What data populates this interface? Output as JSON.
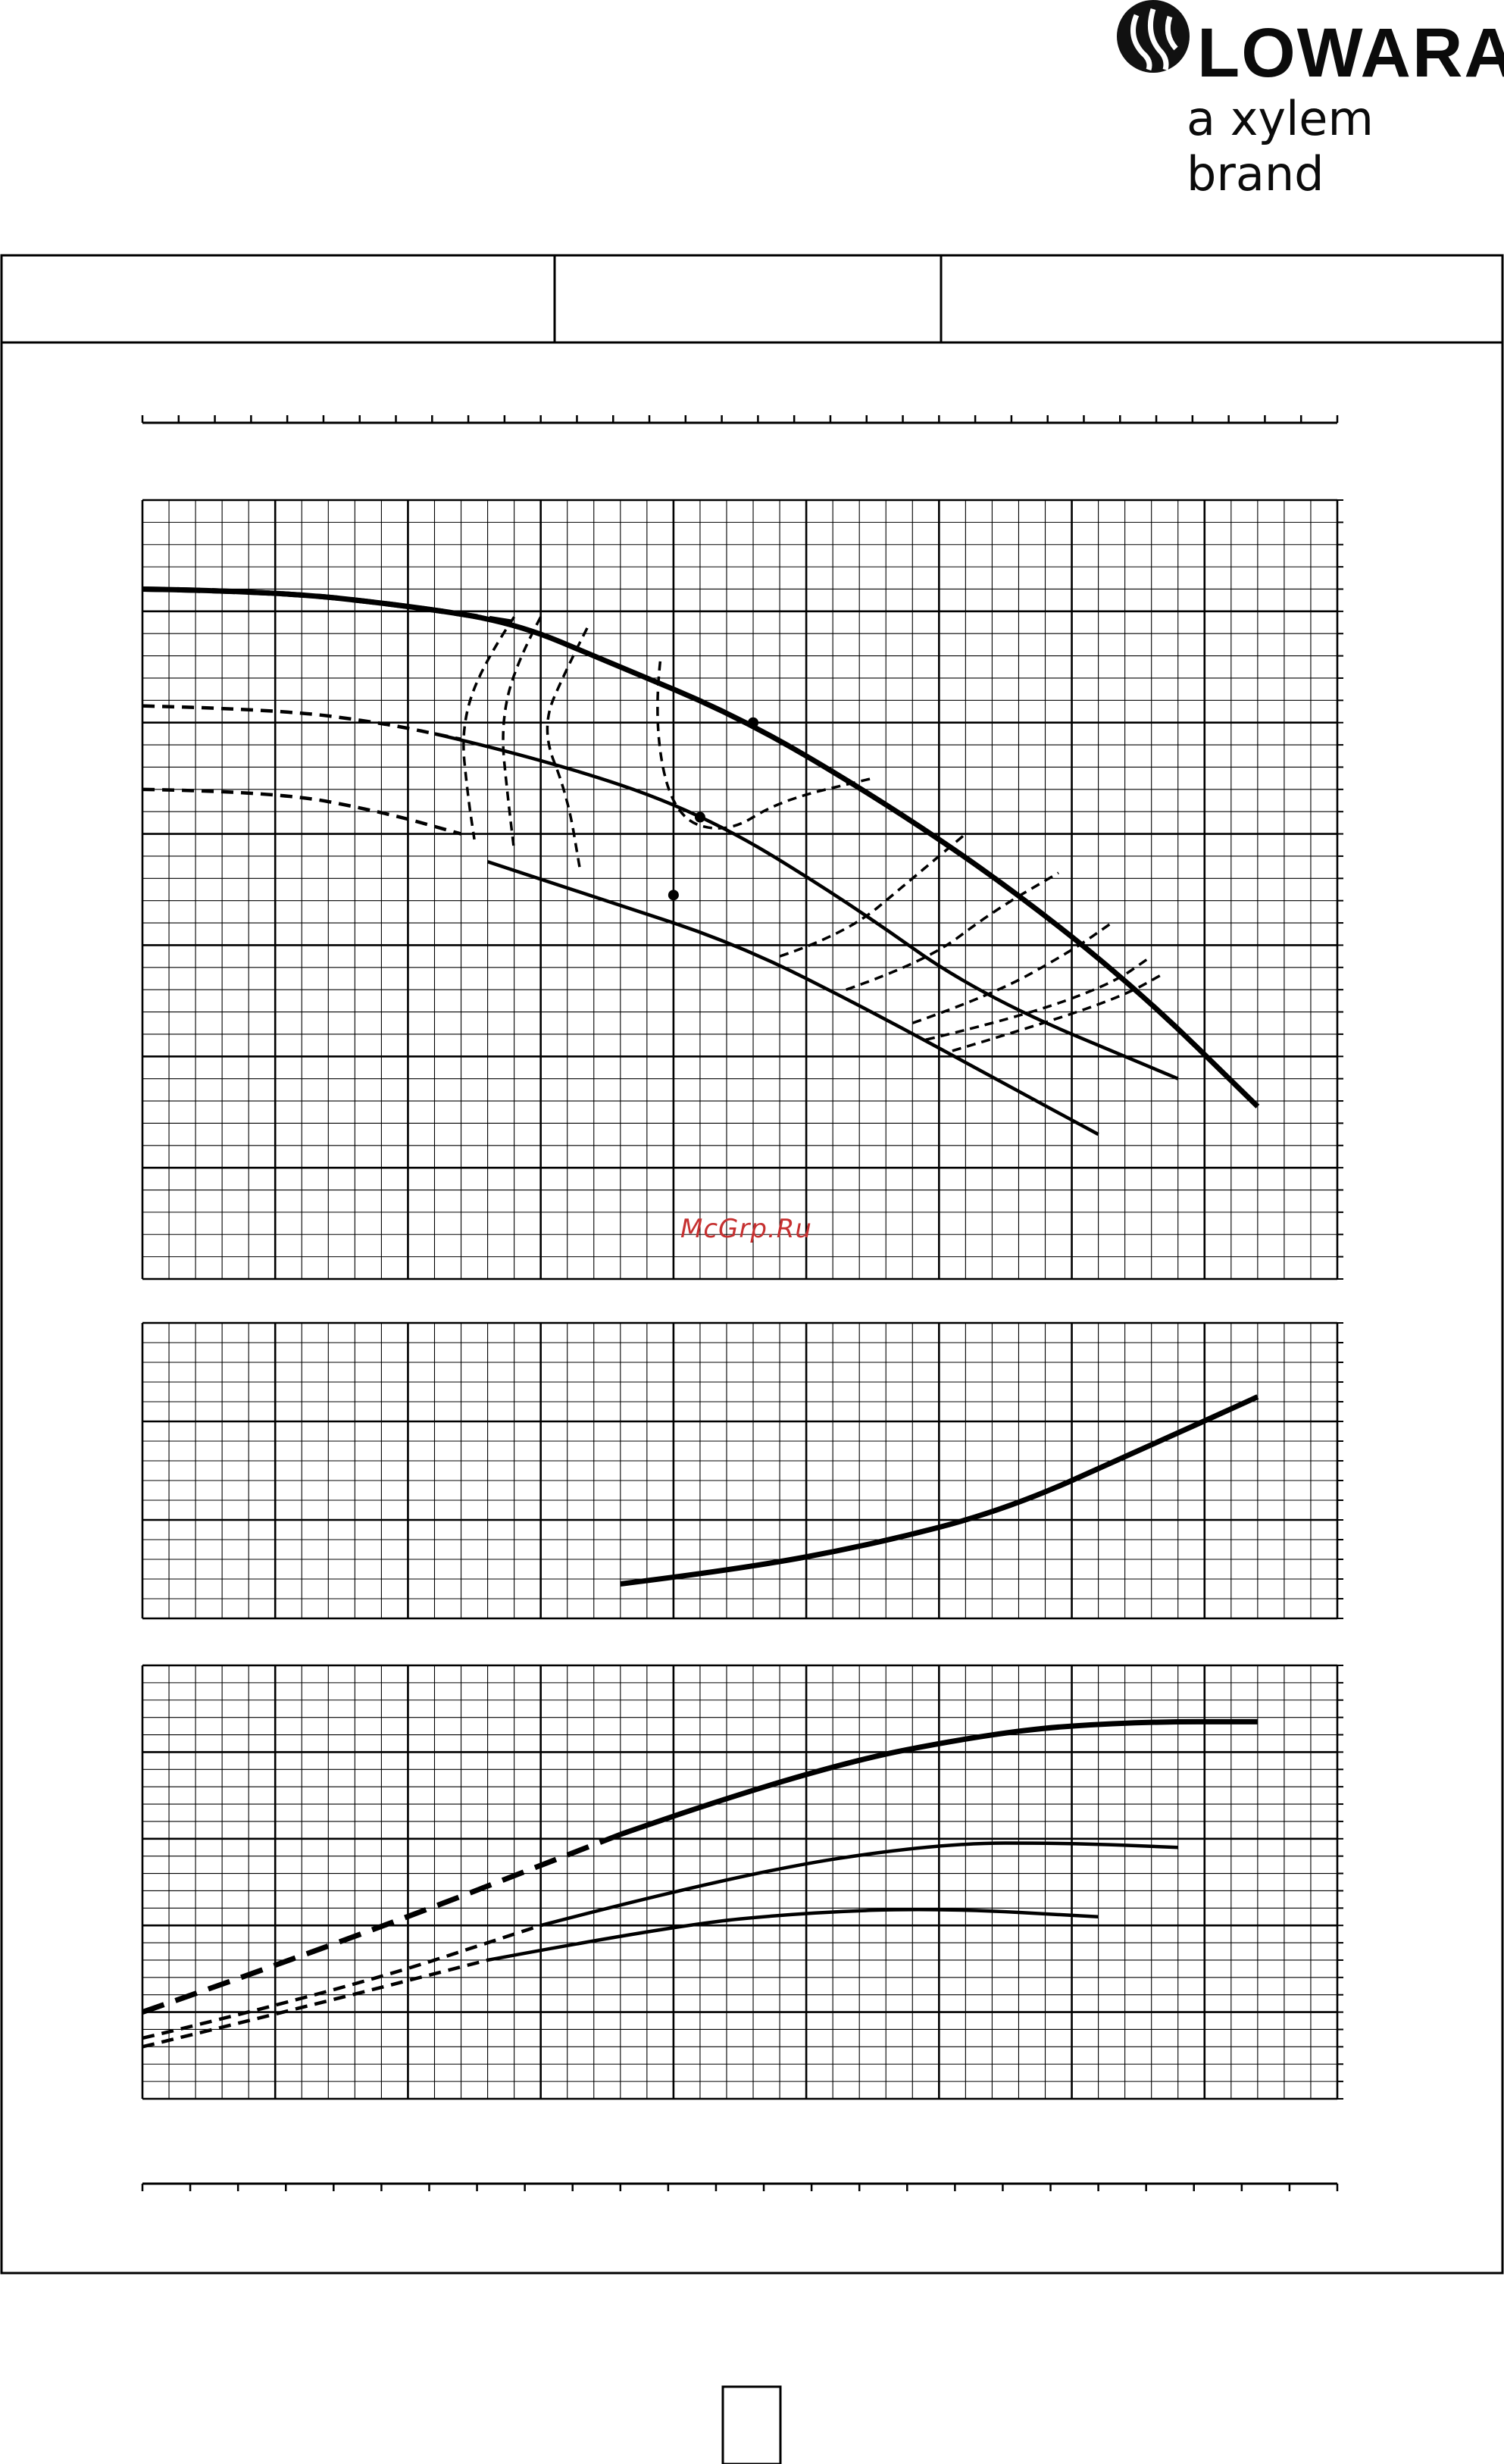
{
  "header": {
    "brand": "LOWARA",
    "tagline": "a xylem brand",
    "watermark": "McGrp.Ru"
  },
  "colors": {
    "ink": "#000000",
    "grid": "#000000",
    "watermark": "#c63030",
    "background": "#ffffff"
  },
  "chart_data": [
    {
      "id": "head",
      "type": "line",
      "title": "",
      "xlabel": "",
      "ylabel": "",
      "x_range": [
        0,
        9
      ],
      "y_range": [
        0,
        7
      ],
      "grid": true,
      "series": [
        {
          "style": "solid-bold",
          "points": [
            [
              0,
              6.2
            ],
            [
              1,
              6.18
            ],
            [
              2,
              6.05
            ],
            [
              2.8,
              5.9
            ],
            [
              3.5,
              5.55
            ],
            [
              4.5,
              5.05
            ],
            [
              5.5,
              4.35
            ],
            [
              6.5,
              3.55
            ],
            [
              7.5,
              2.6
            ],
            [
              8.4,
              1.55
            ]
          ]
        },
        {
          "style": "dashed-bold",
          "points": [
            [
              0,
              6.2
            ],
            [
              1,
              6.18
            ],
            [
              2,
              6.05
            ],
            [
              2.8,
              5.9
            ]
          ]
        },
        {
          "style": "solid",
          "points": [
            [
              2.2,
              4.9
            ],
            [
              3,
              4.68
            ],
            [
              4.2,
              4.2
            ],
            [
              5.3,
              3.4
            ],
            [
              6.3,
              2.55
            ],
            [
              7.8,
              1.8
            ]
          ]
        },
        {
          "style": "dashed",
          "points": [
            [
              0,
              5.15
            ],
            [
              1,
              5.12
            ],
            [
              1.8,
              5.0
            ],
            [
              2.4,
              4.85
            ]
          ]
        },
        {
          "style": "solid",
          "points": [
            [
              2.6,
              3.75
            ],
            [
              3.5,
              3.4
            ],
            [
              4.5,
              3.0
            ],
            [
              5.5,
              2.4
            ],
            [
              6.5,
              1.75
            ],
            [
              7.2,
              1.3
            ]
          ]
        },
        {
          "style": "dashed",
          "points": [
            [
              0,
              4.4
            ],
            [
              1,
              4.38
            ],
            [
              1.8,
              4.2
            ],
            [
              2.4,
              4.0
            ]
          ]
        }
      ],
      "iso_curves": [
        {
          "style": "dashed",
          "points": [
            [
              2.8,
              5.95
            ],
            [
              2.55,
              5.5
            ],
            [
              2.4,
              4.95
            ],
            [
              2.45,
              4.35
            ],
            [
              2.5,
              3.95
            ]
          ]
        },
        {
          "style": "dashed",
          "points": [
            [
              3.0,
              5.95
            ],
            [
              2.8,
              5.5
            ],
            [
              2.7,
              4.95
            ],
            [
              2.75,
              4.35
            ],
            [
              2.8,
              3.85
            ]
          ]
        },
        {
          "style": "dashed",
          "points": [
            [
              3.35,
              5.85
            ],
            [
              3.2,
              5.5
            ],
            [
              3.0,
              4.95
            ],
            [
              3.2,
              4.35
            ],
            [
              3.3,
              3.65
            ]
          ]
        },
        {
          "style": "dashed",
          "points": [
            [
              3.9,
              5.55
            ],
            [
              3.85,
              5.0
            ],
            [
              4.0,
              4.15
            ],
            [
              4.4,
              4.0
            ],
            [
              4.8,
              4.3
            ],
            [
              5.5,
              4.5
            ]
          ]
        },
        {
          "style": "dashed",
          "points": [
            [
              4.8,
              2.9
            ],
            [
              5.3,
              3.1
            ],
            [
              5.8,
              3.6
            ],
            [
              6.2,
              4.0
            ]
          ]
        },
        {
          "style": "dashed",
          "points": [
            [
              5.3,
              2.6
            ],
            [
              5.9,
              2.85
            ],
            [
              6.4,
              3.3
            ],
            [
              6.9,
              3.65
            ]
          ]
        },
        {
          "style": "dashed",
          "points": [
            [
              5.8,
              2.3
            ],
            [
              6.4,
              2.55
            ],
            [
              7.0,
              2.95
            ],
            [
              7.3,
              3.2
            ]
          ]
        },
        {
          "style": "dashed",
          "points": [
            [
              5.9,
              2.15
            ],
            [
              6.6,
              2.35
            ],
            [
              7.3,
              2.65
            ],
            [
              7.6,
              2.9
            ]
          ]
        },
        {
          "style": "dashed",
          "points": [
            [
              6.1,
              2.05
            ],
            [
              6.8,
              2.3
            ],
            [
              7.4,
              2.55
            ],
            [
              7.7,
              2.75
            ]
          ]
        }
      ],
      "markers": [
        [
          4.6,
          5.0
        ],
        [
          4.2,
          4.15
        ],
        [
          4.0,
          3.45
        ]
      ]
    },
    {
      "id": "npsh",
      "type": "line",
      "title": "",
      "xlabel": "",
      "ylabel": "",
      "x_range": [
        0,
        9
      ],
      "y_range": [
        0,
        3
      ],
      "grid": true,
      "series": [
        {
          "style": "solid-bold",
          "points": [
            [
              3.6,
              0.35
            ],
            [
              4.5,
              0.5
            ],
            [
              5.5,
              0.75
            ],
            [
              6.5,
              1.1
            ],
            [
              7.5,
              1.7
            ],
            [
              8.4,
              2.25
            ]
          ]
        }
      ]
    },
    {
      "id": "power",
      "type": "line",
      "title": "",
      "xlabel": "",
      "ylabel": "",
      "x_range": [
        0,
        9
      ],
      "y_range": [
        0,
        5
      ],
      "grid": true,
      "series": [
        {
          "style": "dashed-bold",
          "points": [
            [
              0,
              1.0
            ],
            [
              1.5,
              1.8
            ],
            [
              3.6,
              3.05
            ]
          ]
        },
        {
          "style": "solid-bold",
          "points": [
            [
              3.6,
              3.05
            ],
            [
              5,
              3.8
            ],
            [
              6.5,
              4.25
            ],
            [
              7.5,
              4.35
            ],
            [
              8.4,
              4.35
            ]
          ]
        },
        {
          "style": "dashed",
          "points": [
            [
              0,
              0.7
            ],
            [
              1.5,
              1.25
            ],
            [
              3.0,
              2.0
            ]
          ]
        },
        {
          "style": "solid",
          "points": [
            [
              3.0,
              2.0
            ],
            [
              4.5,
              2.6
            ],
            [
              6.0,
              2.95
            ],
            [
              7.0,
              2.95
            ],
            [
              7.8,
              2.9
            ]
          ]
        },
        {
          "style": "dashed",
          "points": [
            [
              0,
              0.6
            ],
            [
              1.2,
              1.05
            ],
            [
              2.6,
              1.6
            ]
          ]
        },
        {
          "style": "solid",
          "points": [
            [
              2.6,
              1.6
            ],
            [
              4.0,
              2.0
            ],
            [
              5.0,
              2.15
            ],
            [
              6.0,
              2.2
            ],
            [
              7.2,
              2.1
            ]
          ]
        }
      ]
    }
  ]
}
